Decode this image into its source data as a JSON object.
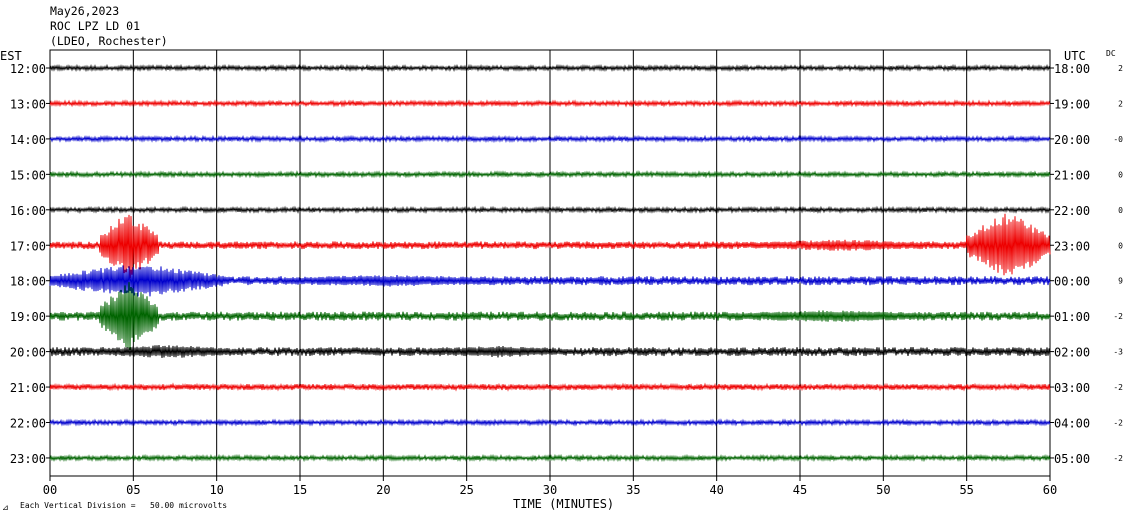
{
  "header": {
    "line1": "May26,2023",
    "line2": "ROC LPZ LD 01",
    "line3": "(LDEO, Rochester)"
  },
  "left_zone_label": "EST",
  "right_zone_label": "UTC",
  "dc_header": "DC",
  "xlabel": "TIME (MINUTES)",
  "footnote": "Each Vertical Division =   50.00 microvolts",
  "colors": {
    "black": "#000000",
    "red": "#ee0000",
    "blue": "#0000cc",
    "green": "#006400",
    "grid": "#000000"
  },
  "chart_data": {
    "type": "line",
    "xlim": [
      0,
      60
    ],
    "x_ticks": [
      "00",
      "05",
      "10",
      "15",
      "20",
      "25",
      "30",
      "35",
      "40",
      "45",
      "50",
      "55",
      "60"
    ],
    "grid": true,
    "rows": [
      {
        "est": "12:00",
        "utc": "18:00",
        "dc": "2",
        "color": "#000000",
        "amp": 1.5
      },
      {
        "est": "13:00",
        "utc": "19:00",
        "dc": "2",
        "color": "#ee0000",
        "amp": 1.5
      },
      {
        "est": "14:00",
        "utc": "20:00",
        "dc": "-0",
        "color": "#0000cc",
        "amp": 1.5
      },
      {
        "est": "15:00",
        "utc": "21:00",
        "dc": "0",
        "color": "#006400",
        "amp": 1.5
      },
      {
        "est": "16:00",
        "utc": "22:00",
        "dc": "0",
        "color": "#000000",
        "amp": 1.5
      },
      {
        "est": "17:00",
        "utc": "23:00",
        "dc": "0",
        "color": "#ee0000",
        "amp": 2.5
      },
      {
        "est": "18:00",
        "utc": "00:00",
        "dc": "9",
        "color": "#0000cc",
        "amp": 3
      },
      {
        "est": "19:00",
        "utc": "01:00",
        "dc": "-2",
        "color": "#006400",
        "amp": 3
      },
      {
        "est": "20:00",
        "utc": "02:00",
        "dc": "-3",
        "color": "#000000",
        "amp": 3
      },
      {
        "est": "21:00",
        "utc": "03:00",
        "dc": "-2",
        "color": "#ee0000",
        "amp": 2
      },
      {
        "est": "22:00",
        "utc": "04:00",
        "dc": "-2",
        "color": "#0000cc",
        "amp": 1.5
      },
      {
        "est": "23:00",
        "utc": "05:00",
        "dc": "-2",
        "color": "#006400",
        "amp": 1.5
      }
    ],
    "events": [
      {
        "row": 5,
        "start": 3.0,
        "end": 6.5,
        "peak": 35
      },
      {
        "row": 5,
        "start": 55.0,
        "end": 60,
        "peak": 35
      },
      {
        "row": 5,
        "start": 40.5,
        "end": 54.5,
        "peak": 6
      },
      {
        "row": 6,
        "start": 0,
        "end": 10.5,
        "peak": 18
      },
      {
        "row": 6,
        "start": 10.5,
        "end": 30,
        "peak": 6
      },
      {
        "row": 7,
        "start": 3.0,
        "end": 6.5,
        "peak": 35
      },
      {
        "row": 7,
        "start": 38.5,
        "end": 55,
        "peak": 6
      },
      {
        "row": 8,
        "start": 2,
        "end": 12,
        "peak": 7
      },
      {
        "row": 8,
        "start": 21.5,
        "end": 32,
        "peak": 6
      }
    ]
  }
}
